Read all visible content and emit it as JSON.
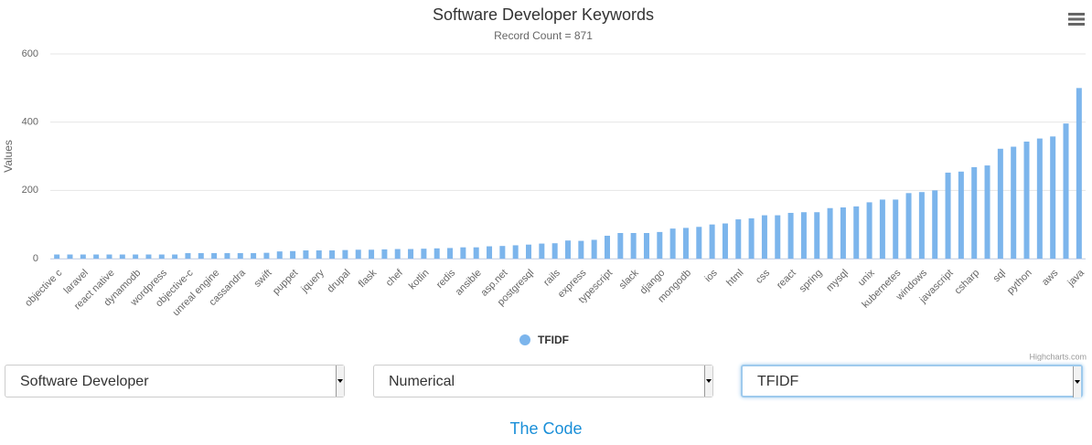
{
  "chart_data": {
    "type": "bar",
    "title": "Software Developer Keywords",
    "subtitle": "Record Count = 871",
    "y_axis_label": "Values",
    "credits": "Highcharts.com",
    "categories": [
      "objective c",
      null,
      "laravel",
      null,
      "react native",
      null,
      "dynamodb",
      null,
      "wordpress",
      null,
      "objective-c",
      null,
      "unreal engine",
      null,
      "cassandra",
      null,
      "swift",
      null,
      "puppet",
      null,
      "jquery",
      null,
      "drupal",
      null,
      "flask",
      null,
      "chef",
      null,
      "kotlin",
      null,
      "redis",
      null,
      "ansible",
      null,
      "asp.net",
      null,
      "postgresql",
      null,
      "rails",
      null,
      "express",
      null,
      "typescript",
      null,
      "slack",
      null,
      "django",
      null,
      "mongodb",
      null,
      "ios",
      null,
      "html",
      null,
      "css",
      null,
      "react",
      null,
      "spring",
      null,
      "mysql",
      null,
      "unix",
      null,
      "kubernetes",
      null,
      "windows",
      null,
      "javascript",
      null,
      "csharp",
      null,
      "sql",
      null,
      "python",
      null,
      "aws",
      null,
      "java"
    ],
    "series": [
      {
        "name": "TFIDF",
        "color": "#7cb5ec",
        "values": [
          12,
          12,
          12,
          12,
          12,
          12,
          12,
          12,
          12,
          12,
          16,
          16,
          16,
          16,
          16,
          16,
          17,
          21,
          22,
          24,
          24,
          24,
          25,
          26,
          26,
          27,
          28,
          28,
          29,
          30,
          31,
          33,
          33,
          36,
          37,
          39,
          41,
          44,
          45,
          53,
          52,
          55,
          67,
          75,
          75,
          75,
          78,
          88,
          90,
          93,
          100,
          103,
          115,
          118,
          127,
          127,
          134,
          136,
          136,
          148,
          150,
          153,
          165,
          173,
          173,
          192,
          195,
          200,
          252,
          255,
          268,
          273,
          322,
          328,
          343,
          352,
          358,
          396,
          500
        ]
      }
    ],
    "ylim": [
      0,
      600
    ],
    "yticks": [
      0,
      200,
      400,
      600
    ],
    "grid": true,
    "legend": "bottom"
  },
  "controls": {
    "selects": [
      "Software Developer",
      "Numerical",
      "TFIDF"
    ],
    "link": "The Code"
  }
}
